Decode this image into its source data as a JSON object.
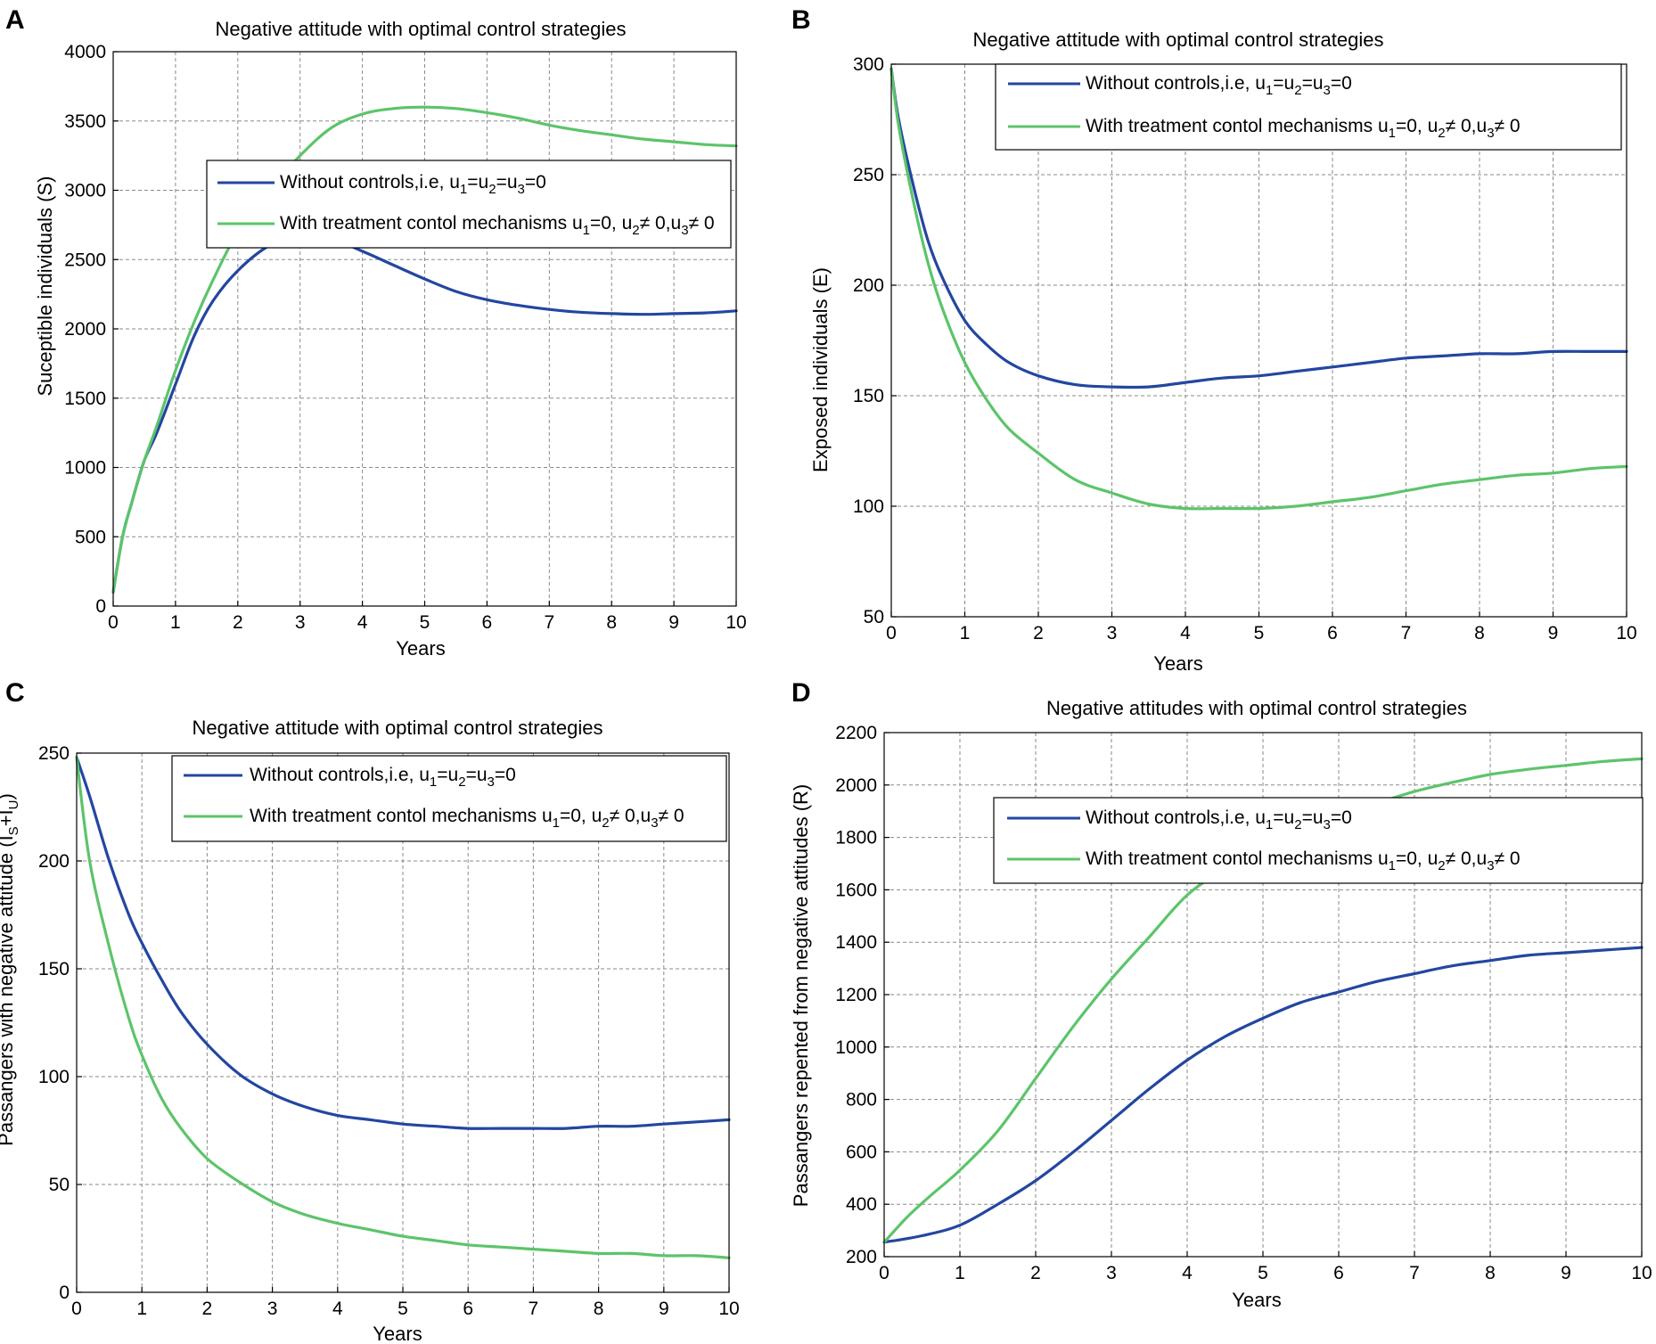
{
  "colors": {
    "no_control": "#2346a0",
    "treatment": "#5cc46a"
  },
  "chart_data": [
    {
      "panel": "A",
      "type": "line",
      "title": "Negative attitude with optimal control strategies",
      "xlabel": "Years",
      "ylabel": "Suceptible individuals (S)",
      "xlim": [
        0,
        10
      ],
      "ylim": [
        0,
        4000
      ],
      "xticks": [
        0,
        1,
        2,
        3,
        4,
        5,
        6,
        7,
        8,
        9,
        10
      ],
      "yticks": [
        0,
        500,
        1000,
        1500,
        2000,
        2500,
        3000,
        3500,
        4000
      ],
      "legend_position": "upper-center",
      "series": [
        {
          "name": "Without controls,i.e, u1=u2=u3=0",
          "color_key": "no_control",
          "x": [
            0,
            0.15,
            0.3,
            0.5,
            0.7,
            1,
            1.3,
            1.6,
            2,
            2.5,
            3,
            3.5,
            4,
            4.5,
            5,
            5.5,
            6,
            6.5,
            7,
            7.5,
            8,
            8.5,
            9,
            9.5,
            10
          ],
          "y": [
            100,
            500,
            750,
            1050,
            1250,
            1600,
            1950,
            2200,
            2420,
            2600,
            2680,
            2650,
            2560,
            2460,
            2360,
            2270,
            2210,
            2170,
            2140,
            2120,
            2110,
            2105,
            2110,
            2115,
            2130
          ]
        },
        {
          "name": "With treatment contol mechanisms u1=0, u2≠ 0,u3≠ 0",
          "color_key": "treatment",
          "x": [
            0,
            0.15,
            0.3,
            0.5,
            0.7,
            1,
            1.3,
            1.6,
            2,
            2.5,
            3,
            3.5,
            4,
            4.5,
            5,
            5.5,
            6,
            6.5,
            7,
            7.5,
            8,
            8.5,
            9,
            9.5,
            10
          ],
          "y": [
            100,
            500,
            750,
            1050,
            1300,
            1700,
            2050,
            2350,
            2700,
            3000,
            3250,
            3450,
            3550,
            3590,
            3600,
            3590,
            3560,
            3520,
            3470,
            3430,
            3400,
            3370,
            3350,
            3330,
            3320
          ]
        }
      ],
      "legend_labels": [
        {
          "pre": "Without controls,i.e, u",
          "sub1": "1",
          "mid1": "=u",
          "sub2": "2",
          "mid2": "=u",
          "sub3": "3",
          "post": "=0"
        },
        {
          "pre": "With treatment contol mechanisms u",
          "sub1": "1",
          "mid1": "=0, u",
          "sub2": "2",
          "mid2": "≠ 0,u",
          "sub3": "3",
          "post": "≠ 0"
        }
      ]
    },
    {
      "panel": "B",
      "type": "line",
      "title": "Negative attitude with optimal control strategies",
      "xlabel": "Years",
      "ylabel": "Exposed individuals (E)",
      "xlim": [
        0,
        10
      ],
      "ylim": [
        50,
        300
      ],
      "xticks": [
        0,
        1,
        2,
        3,
        4,
        5,
        6,
        7,
        8,
        9,
        10
      ],
      "yticks": [
        50,
        100,
        150,
        200,
        250,
        300
      ],
      "legend_position": "top-right",
      "series": [
        {
          "name": "Without controls,i.e, u1=u2=u3=0",
          "color_key": "no_control",
          "x": [
            0,
            0.1,
            0.3,
            0.5,
            0.7,
            1,
            1.3,
            1.6,
            2,
            2.5,
            3,
            3.5,
            4,
            4.5,
            5,
            5.5,
            6,
            6.5,
            7,
            7.5,
            8,
            8.5,
            9,
            9.5,
            10
          ],
          "y": [
            298,
            275,
            245,
            220,
            203,
            184,
            173,
            165,
            159,
            155,
            154,
            154,
            156,
            158,
            159,
            161,
            163,
            165,
            167,
            168,
            169,
            169,
            170,
            170,
            170
          ]
        },
        {
          "name": "With treatment contol mechanisms u1=0, u2≠ 0,u3≠ 0",
          "color_key": "treatment",
          "x": [
            0,
            0.1,
            0.3,
            0.5,
            0.7,
            1,
            1.3,
            1.6,
            2,
            2.5,
            3,
            3.5,
            4,
            4.5,
            5,
            5.5,
            6,
            6.5,
            7,
            7.5,
            8,
            8.5,
            9,
            9.5,
            10
          ],
          "y": [
            298,
            272,
            238,
            210,
            189,
            165,
            148,
            135,
            124,
            112,
            106,
            101,
            99,
            99,
            99,
            100,
            102,
            104,
            107,
            110,
            112,
            114,
            115,
            117,
            118
          ]
        }
      ],
      "legend_labels": [
        {
          "pre": "Without controls,i.e, u",
          "sub1": "1",
          "mid1": "=u",
          "sub2": "2",
          "mid2": "=u",
          "sub3": "3",
          "post": "=0"
        },
        {
          "pre": "With treatment contol mechanisms u",
          "sub1": "1",
          "mid1": "=0, u",
          "sub2": "2",
          "mid2": "≠ 0,u",
          "sub3": "3",
          "post": "≠ 0"
        }
      ]
    },
    {
      "panel": "C",
      "type": "line",
      "title": "Negative attitude with optimal control strategies",
      "xlabel": "Years",
      "ylabel_pre": "Passangers with negative attitude (I",
      "ylabel_sub1": "S",
      "ylabel_mid": "+I",
      "ylabel_sub2": "U",
      "ylabel_post": ")",
      "xlim": [
        0,
        10
      ],
      "ylim": [
        0,
        250
      ],
      "xticks": [
        0,
        1,
        2,
        3,
        4,
        5,
        6,
        7,
        8,
        9,
        10
      ],
      "yticks": [
        0,
        50,
        100,
        150,
        200,
        250
      ],
      "legend_position": "top-right",
      "series": [
        {
          "name": "Without controls,i.e, u1=u2=u3=0",
          "color_key": "no_control",
          "x": [
            0,
            0.2,
            0.5,
            0.8,
            1,
            1.3,
            1.6,
            2,
            2.5,
            3,
            3.5,
            4,
            4.5,
            5,
            5.5,
            6,
            6.5,
            7,
            7.5,
            8,
            8.5,
            9,
            9.5,
            10
          ],
          "y": [
            248,
            230,
            200,
            175,
            162,
            145,
            130,
            115,
            101,
            92,
            86,
            82,
            80,
            78,
            77,
            76,
            76,
            76,
            76,
            77,
            77,
            78,
            79,
            80
          ]
        },
        {
          "name": "With treatment contol mechanisms u1=0, u2≠ 0,u3≠ 0",
          "color_key": "treatment",
          "x": [
            0,
            0.2,
            0.5,
            0.8,
            1,
            1.3,
            1.6,
            2,
            2.5,
            3,
            3.5,
            4,
            4.5,
            5,
            5.5,
            6,
            6.5,
            7,
            7.5,
            8,
            8.5,
            9,
            9.5,
            10
          ],
          "y": [
            248,
            200,
            160,
            127,
            110,
            90,
            76,
            62,
            51,
            42,
            36,
            32,
            29,
            26,
            24,
            22,
            21,
            20,
            19,
            18,
            18,
            17,
            17,
            16
          ]
        }
      ],
      "legend_labels": [
        {
          "pre": "Without controls,i.e, u",
          "sub1": "1",
          "mid1": "=u",
          "sub2": "2",
          "mid2": "=u",
          "sub3": "3",
          "post": "=0"
        },
        {
          "pre": "With treatment contol mechanisms u",
          "sub1": "1",
          "mid1": "=0, u",
          "sub2": "2",
          "mid2": "≠ 0,u",
          "sub3": "3",
          "post": "≠ 0"
        }
      ]
    },
    {
      "panel": "D",
      "type": "line",
      "title": "Negative attitudes with optimal control strategies",
      "xlabel": "Years",
      "ylabel": "Passangers repented from negative attitudes (R)",
      "xlim": [
        0,
        10
      ],
      "ylim": [
        200,
        2200
      ],
      "xticks": [
        0,
        1,
        2,
        3,
        4,
        5,
        6,
        7,
        8,
        9,
        10
      ],
      "yticks": [
        200,
        400,
        600,
        800,
        1000,
        1200,
        1400,
        1600,
        1800,
        2000,
        2200
      ],
      "legend_position": "right",
      "series": [
        {
          "name": "Without controls,i.e, u1=u2=u3=0",
          "color_key": "no_control",
          "x": [
            0,
            0.5,
            1,
            1.5,
            2,
            2.5,
            3,
            3.5,
            4,
            4.5,
            5,
            5.5,
            6,
            6.5,
            7,
            7.5,
            8,
            8.5,
            9,
            9.5,
            10
          ],
          "y": [
            255,
            280,
            320,
            400,
            490,
            600,
            720,
            840,
            950,
            1040,
            1110,
            1170,
            1210,
            1250,
            1280,
            1310,
            1330,
            1350,
            1360,
            1370,
            1380
          ]
        },
        {
          "name": "With treatment contol mechanisms u1=0, u2≠ 0,u3≠ 0",
          "color_key": "treatment",
          "x": [
            0,
            0.3,
            0.6,
            1,
            1.5,
            2,
            2.5,
            3,
            3.5,
            4,
            4.5,
            5,
            5.5,
            6,
            6.5,
            7,
            7.5,
            8,
            8.5,
            9,
            9.5,
            10
          ],
          "y": [
            255,
            350,
            430,
            530,
            680,
            880,
            1080,
            1260,
            1420,
            1580,
            1680,
            1760,
            1830,
            1880,
            1930,
            1975,
            2010,
            2040,
            2060,
            2075,
            2090,
            2100
          ]
        }
      ],
      "legend_labels": [
        {
          "pre": "Without controls,i.e, u",
          "sub1": "1",
          "mid1": "=u",
          "sub2": "2",
          "mid2": "=u",
          "sub3": "3",
          "post": "=0"
        },
        {
          "pre": "With treatment contol mechanisms u",
          "sub1": "1",
          "mid1": "=0, u",
          "sub2": "2",
          "mid2": "≠ 0,u",
          "sub3": "3",
          "post": "≠ 0"
        }
      ]
    }
  ]
}
